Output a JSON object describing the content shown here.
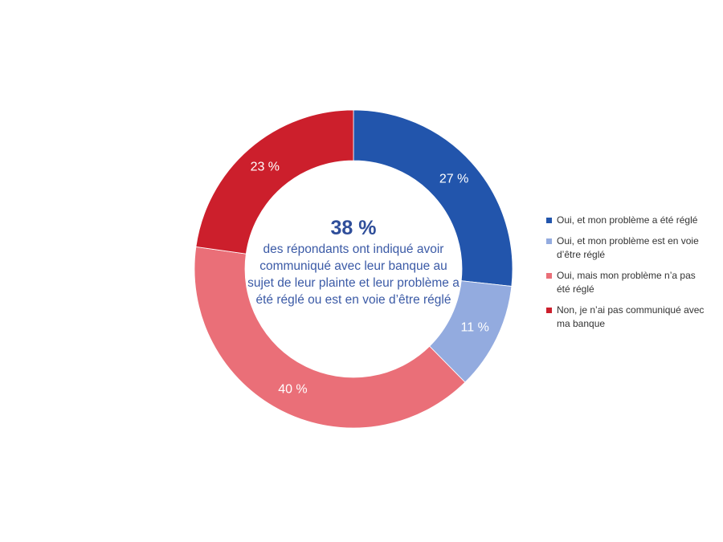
{
  "chart_data": {
    "type": "pie",
    "variant": "donut",
    "categories": [
      "Oui, et mon problème a été réglé",
      "Oui, et mon problème est en voie d’être réglé",
      "Oui, mais mon problème n’a pas été réglé",
      "Non, je n’ai pas communiqué avec ma banque"
    ],
    "values": [
      27,
      11,
      40,
      23
    ],
    "data_labels": [
      "27 %",
      "11 %",
      "40 %",
      "23 %"
    ],
    "colors": [
      "#2255ac",
      "#93abdf",
      "#ea6f78",
      "#cc1f2c"
    ],
    "legend_position": "right",
    "center": {
      "value": "38 %",
      "caption": "des répondants ont indiqué avoir communiqué avec leur banque au sujet de leur plainte et leur problème a été réglé ou est en voie d’être réglé"
    }
  }
}
